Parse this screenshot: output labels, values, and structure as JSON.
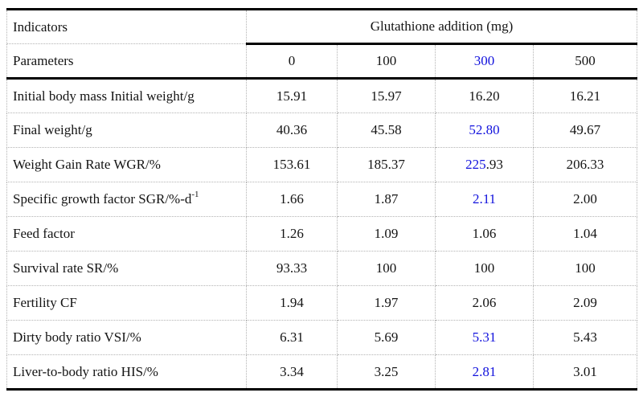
{
  "colors": {
    "text": "#141414",
    "highlight_blue": "#1212dd",
    "grid_dotted": "#b3b3b3",
    "rule_black": "#000000",
    "background": "#ffffff"
  },
  "table": {
    "header": {
      "col1_row1": "Indicators",
      "col1_row2": "Parameters",
      "group_label": "Glutathione addition (mg)",
      "doses": [
        {
          "text": "0",
          "color": "black"
        },
        {
          "text": "100",
          "color": "black"
        },
        {
          "text": "300",
          "color": "blue"
        },
        {
          "text": "500",
          "color": "black"
        }
      ]
    },
    "rows": [
      {
        "label": [
          {
            "t": "Initial body mass Initial weight/g"
          }
        ],
        "values": [
          [
            {
              "t": "15.91"
            }
          ],
          [
            {
              "t": "15.97"
            }
          ],
          [
            {
              "t": "16.20"
            }
          ],
          [
            {
              "t": "16.21"
            }
          ]
        ]
      },
      {
        "label": [
          {
            "t": "Final weight/g"
          }
        ],
        "values": [
          [
            {
              "t": "40.36"
            }
          ],
          [
            {
              "t": "45.58"
            }
          ],
          [
            {
              "t": "52.80",
              "c": "blue"
            }
          ],
          [
            {
              "t": "49.67"
            }
          ]
        ]
      },
      {
        "label": [
          {
            "t": "Weight Gain Rate WGR/%"
          }
        ],
        "values": [
          [
            {
              "t": "153.61"
            }
          ],
          [
            {
              "t": "185.37"
            }
          ],
          [
            {
              "t": "225",
              "c": "blue"
            },
            {
              "t": ".93"
            }
          ],
          [
            {
              "t": "206.33"
            }
          ]
        ]
      },
      {
        "label": [
          {
            "t": "Specific growth factor SGR/%-d"
          },
          {
            "t": "-1",
            "sup": true
          }
        ],
        "values": [
          [
            {
              "t": "1.66"
            }
          ],
          [
            {
              "t": "1.87"
            }
          ],
          [
            {
              "t": "2.11",
              "c": "blue"
            }
          ],
          [
            {
              "t": "2.00"
            }
          ]
        ]
      },
      {
        "label": [
          {
            "t": "Feed factor"
          }
        ],
        "values": [
          [
            {
              "t": "1.26"
            }
          ],
          [
            {
              "t": "1.09"
            }
          ],
          [
            {
              "t": "1.06"
            }
          ],
          [
            {
              "t": "1.04"
            }
          ]
        ]
      },
      {
        "label": [
          {
            "t": "Survival rate SR/%"
          }
        ],
        "values": [
          [
            {
              "t": "93.33"
            }
          ],
          [
            {
              "t": "100"
            }
          ],
          [
            {
              "t": "100"
            }
          ],
          [
            {
              "t": "100"
            }
          ]
        ]
      },
      {
        "label": [
          {
            "t": "Fertility CF"
          }
        ],
        "values": [
          [
            {
              "t": "1.94"
            }
          ],
          [
            {
              "t": "1.97"
            }
          ],
          [
            {
              "t": "2.06"
            }
          ],
          [
            {
              "t": "2.09"
            }
          ]
        ]
      },
      {
        "label": [
          {
            "t": "Dirty body ratio VSI/%"
          }
        ],
        "values": [
          [
            {
              "t": "6.31"
            }
          ],
          [
            {
              "t": "5.69"
            }
          ],
          [
            {
              "t": "5.31",
              "c": "blue"
            }
          ],
          [
            {
              "t": "5.43"
            }
          ]
        ]
      },
      {
        "label": [
          {
            "t": "Liver-to-body ratio HIS/%"
          }
        ],
        "values": [
          [
            {
              "t": "3.34"
            }
          ],
          [
            {
              "t": "3.25"
            }
          ],
          [
            {
              "t": "2.81",
              "c": "blue"
            }
          ],
          [
            {
              "t": "3.01"
            }
          ]
        ]
      }
    ]
  },
  "chart_data": {
    "type": "table",
    "title": "Glutathione addition (mg)",
    "columns": [
      "Indicators Parameters",
      "0",
      "100",
      "300",
      "500"
    ],
    "highlighted_column": "300",
    "rows": [
      {
        "label": "Initial body mass Initial weight/g",
        "values": [
          15.91,
          15.97,
          16.2,
          16.21
        ]
      },
      {
        "label": "Final weight/g",
        "values": [
          40.36,
          45.58,
          52.8,
          49.67
        ]
      },
      {
        "label": "Weight Gain Rate WGR/%",
        "values": [
          153.61,
          185.37,
          225.93,
          206.33
        ]
      },
      {
        "label": "Specific growth factor SGR/%-d-1",
        "values": [
          1.66,
          1.87,
          2.11,
          2.0
        ]
      },
      {
        "label": "Feed factor",
        "values": [
          1.26,
          1.09,
          1.06,
          1.04
        ]
      },
      {
        "label": "Survival rate SR/%",
        "values": [
          93.33,
          100,
          100,
          100
        ]
      },
      {
        "label": "Fertility CF",
        "values": [
          1.94,
          1.97,
          2.06,
          2.09
        ]
      },
      {
        "label": "Dirty body ratio VSI/%",
        "values": [
          6.31,
          5.69,
          5.31,
          5.43
        ]
      },
      {
        "label": "Liver-to-body ratio HIS/%",
        "values": [
          3.34,
          3.25,
          2.81,
          3.01
        ]
      }
    ]
  }
}
